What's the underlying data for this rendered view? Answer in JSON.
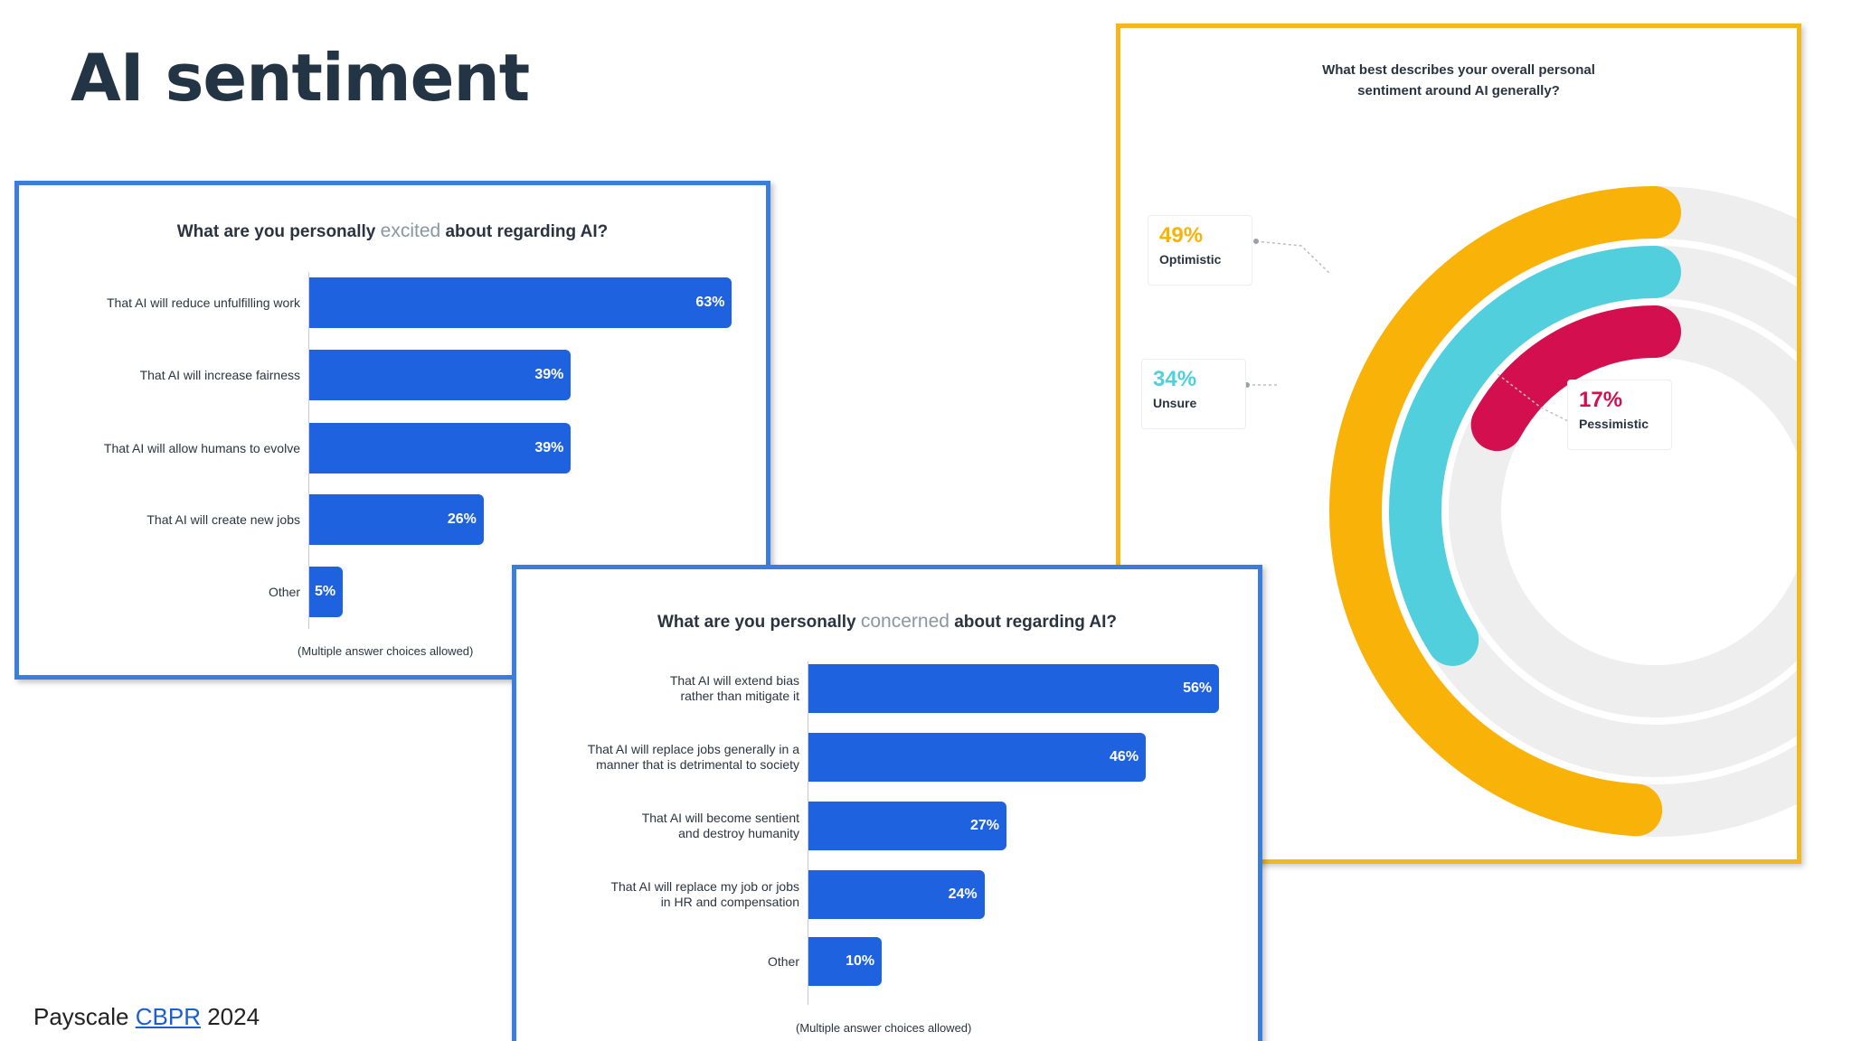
{
  "slide": {
    "title": "AI sentiment",
    "source_prefix": "Payscale ",
    "source_link": "CBPR",
    "source_suffix": " 2024"
  },
  "colors": {
    "bar_blue": "#1f62e0",
    "panel_border_blue": "#3b7ddd",
    "panel_border_gold": "#f3b81f",
    "optimistic": "#f9b208",
    "unsure": "#52cfdc",
    "pessimistic": "#d30f4f",
    "track": "#eeeeef"
  },
  "chart_data": [
    {
      "type": "bar",
      "orientation": "horizontal",
      "title_before": "What are you personally ",
      "title_highlight": "excited",
      "title_after": " about regarding AI?",
      "categories": [
        "That AI will reduce unfulfilling work",
        "That AI will increase fairness",
        "That AI will allow humans to evolve",
        "That AI will create new jobs",
        "Other"
      ],
      "values": [
        63,
        39,
        39,
        26,
        5
      ],
      "value_labels": [
        "63%",
        "39%",
        "39%",
        "26%",
        "5%"
      ],
      "xlim": [
        0,
        100
      ],
      "footnote": "(Multiple answer choices allowed)"
    },
    {
      "type": "bar",
      "orientation": "horizontal",
      "title_before": "What are you personally ",
      "title_highlight": "concerned",
      "title_after": " about regarding AI?",
      "categories": [
        [
          "That AI will extend bias",
          "rather than mitigate it"
        ],
        [
          "That AI will replace jobs generally in a",
          "manner that is detrimental to society"
        ],
        [
          "That AI will become sentient",
          "and destroy humanity"
        ],
        [
          "That AI will replace my job or jobs",
          "in HR and compensation"
        ],
        [
          "Other"
        ]
      ],
      "values": [
        56,
        46,
        27,
        24,
        10
      ],
      "value_labels": [
        "56%",
        "46%",
        "27%",
        "24%",
        "10%"
      ],
      "xlim": [
        0,
        100
      ],
      "footnote": "(Multiple answer choices allowed)"
    },
    {
      "type": "pie",
      "variant": "radial-bar",
      "title_line1": "What best describes your overall personal",
      "title_line2": "sentiment around AI generally?",
      "series": [
        {
          "name": "Optimistic",
          "value": 49,
          "label": "49%",
          "color": "#f9b208"
        },
        {
          "name": "Unsure",
          "value": 34,
          "label": "34%",
          "color": "#52cfdc"
        },
        {
          "name": "Pessimistic",
          "value": 17,
          "label": "17%",
          "color": "#d30f4f"
        }
      ]
    }
  ]
}
